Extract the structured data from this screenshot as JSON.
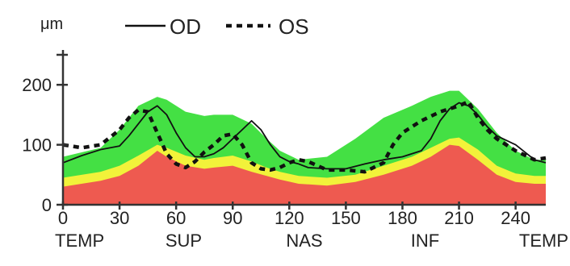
{
  "chart_data": {
    "type": "line",
    "ylabel": "μm",
    "xlim": [
      0,
      256
    ],
    "ylim": [
      0,
      250
    ],
    "x_ticks": [
      0,
      30,
      60,
      90,
      120,
      150,
      180,
      210,
      240
    ],
    "y_ticks": [
      0,
      100,
      200
    ],
    "region_labels": [
      {
        "x": 0,
        "label": "TEMP"
      },
      {
        "x": 64,
        "label": "SUP"
      },
      {
        "x": 128,
        "label": "NAS"
      },
      {
        "x": 192,
        "label": "INF"
      },
      {
        "x": 256,
        "label": "TEMP"
      }
    ],
    "legend": [
      {
        "label": "OD",
        "style": "solid"
      },
      {
        "label": "OS",
        "style": "dashed"
      }
    ],
    "colors": {
      "normal_band": "#44e044",
      "borderline_band": "#f2f23a",
      "outside_normal": "#ee5a50",
      "line": "#111111"
    },
    "bands": {
      "x": [
        0,
        20,
        30,
        40,
        50,
        55,
        65,
        75,
        80,
        90,
        100,
        108,
        115,
        125,
        140,
        155,
        170,
        185,
        195,
        205,
        210,
        220,
        230,
        240,
        250,
        256
      ],
      "red_top": [
        30,
        40,
        48,
        65,
        90,
        80,
        65,
        60,
        62,
        65,
        55,
        48,
        42,
        35,
        32,
        38,
        50,
        65,
        80,
        100,
        98,
        75,
        50,
        38,
        35,
        35
      ],
      "yellow_top": [
        45,
        55,
        65,
        82,
        100,
        95,
        82,
        75,
        78,
        82,
        72,
        62,
        55,
        48,
        45,
        50,
        65,
        80,
        95,
        110,
        112,
        92,
        65,
        52,
        48,
        48
      ],
      "green_top": [
        80,
        95,
        125,
        165,
        180,
        175,
        155,
        148,
        150,
        150,
        135,
        110,
        90,
        75,
        80,
        110,
        145,
        165,
        180,
        190,
        190,
        160,
        120,
        90,
        75,
        75
      ]
    },
    "series": [
      {
        "name": "OD",
        "style": "solid",
        "x": [
          0,
          10,
          20,
          30,
          35,
          40,
          45,
          50,
          55,
          60,
          65,
          70,
          75,
          80,
          85,
          90,
          95,
          100,
          105,
          110,
          115,
          120,
          125,
          130,
          140,
          150,
          160,
          170,
          180,
          190,
          195,
          200,
          205,
          210,
          215,
          220,
          225,
          230,
          240,
          250,
          256
        ],
        "values": [
          70,
          82,
          92,
          98,
          115,
          135,
          155,
          165,
          150,
          120,
          95,
          80,
          80,
          85,
          95,
          110,
          125,
          140,
          125,
          100,
          80,
          72,
          68,
          62,
          60,
          60,
          68,
          75,
          80,
          90,
          110,
          140,
          160,
          170,
          165,
          150,
          130,
          115,
          100,
          75,
          70
        ]
      },
      {
        "name": "OS",
        "style": "dashed",
        "x": [
          0,
          10,
          20,
          30,
          35,
          40,
          45,
          50,
          55,
          60,
          65,
          70,
          75,
          80,
          85,
          90,
          95,
          100,
          105,
          110,
          115,
          120,
          125,
          130,
          140,
          150,
          160,
          170,
          175,
          180,
          185,
          190,
          200,
          210,
          215,
          220,
          225,
          230,
          240,
          250,
          256
        ],
        "values": [
          100,
          95,
          100,
          125,
          145,
          158,
          155,
          120,
          85,
          68,
          62,
          72,
          88,
          100,
          115,
          118,
          100,
          70,
          60,
          58,
          62,
          70,
          75,
          72,
          58,
          58,
          55,
          70,
          100,
          120,
          130,
          140,
          155,
          165,
          172,
          145,
          125,
          110,
          90,
          75,
          78
        ]
      }
    ]
  }
}
